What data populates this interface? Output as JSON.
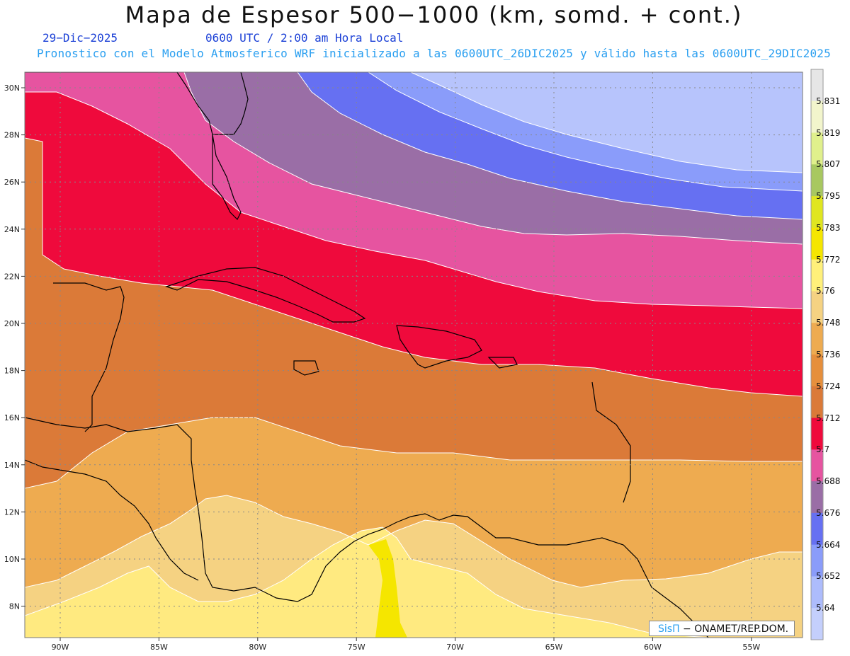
{
  "title": "Mapa de Espesor 500−1000 (km, somd. + cont.)",
  "header": {
    "date": "29−Dic−2025",
    "time": "0600 UTC / 2:00 am Hora Local",
    "model_info": "Pronostico con el Modelo Atmosferico WRF inicializado a las 0600UTC_26DIC2025 y válido hasta las  0600UTC_29DIC2025"
  },
  "map": {
    "lat_labels": [
      "30N",
      "28N",
      "26N",
      "24N",
      "22N",
      "20N",
      "18N",
      "16N",
      "14N",
      "12N",
      "10N",
      "8N"
    ],
    "lon_labels": [
      "90W",
      "85W",
      "80W",
      "75W",
      "70W",
      "65W",
      "60W",
      "55W"
    ]
  },
  "colorbar": {
    "labels": [
      "5.831",
      "5.819",
      "5.807",
      "5.795",
      "5.783",
      "5.772",
      "5.76",
      "5.748",
      "5.736",
      "5.724",
      "5.712",
      "5.7",
      "5.688",
      "5.676",
      "5.664",
      "5.652",
      "5.64"
    ],
    "colors": [
      "#e6e6e6",
      "#f2f5cc",
      "#e0f08c",
      "#a8c860",
      "#e0e620",
      "#f5e600",
      "#fff07a",
      "#f5d282",
      "#eeab50",
      "#e68f3c",
      "#db7a38",
      "#ef0a3c",
      "#e654a0",
      "#9a6ea6",
      "#6670f2",
      "#8a9cfa",
      "#adbcfc",
      "#c4cffc"
    ]
  },
  "credit": {
    "brand": "SisΠ",
    "text": " − ONAMET/REP.DOM."
  },
  "colors": {
    "band_yellow": "#ffea80",
    "band_light_orange": "#f5d282",
    "band_orange": "#eeab50",
    "band_dark_orange": "#db7a38",
    "band_red": "#ef0a3c",
    "band_pink": "#e654a0",
    "band_purple": "#9a6ea6",
    "band_blue": "#6670f2",
    "band_light_blue": "#8a9cfa",
    "band_pale_blue": "#b7c4fc",
    "title_blue": "#1a3fd6",
    "info_cyan": "#2a9ff0"
  }
}
